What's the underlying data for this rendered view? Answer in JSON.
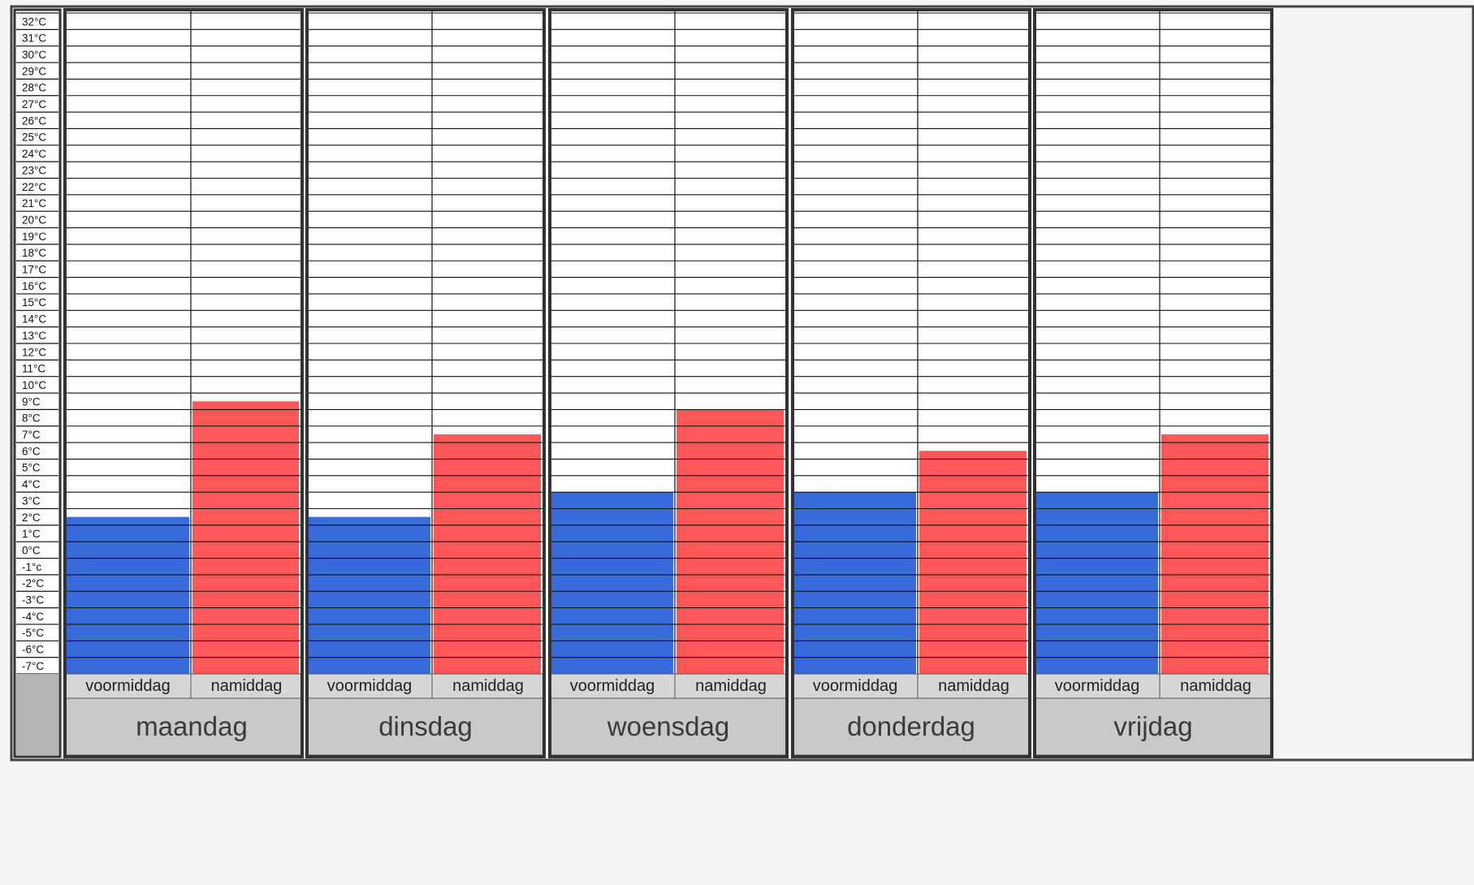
{
  "chart_data": {
    "type": "bar",
    "unit": "°C",
    "y_ticks": [
      "32°C",
      "31°C",
      "30°C",
      "29°C",
      "28°C",
      "27°C",
      "26°C",
      "25°C",
      "24°C",
      "23°C",
      "22°C",
      "21°C",
      "20°C",
      "19°C",
      "18°C",
      "17°C",
      "16°C",
      "15°C",
      "14°C",
      "13°C",
      "12°C",
      "11°C",
      "10°C",
      "9°C",
      "8°C",
      "7°C",
      "6°C",
      "5°C",
      "4°C",
      "3°C",
      "2°C",
      "1°C",
      "0°C",
      "-1°c",
      "-2°C",
      "-3°C",
      "-4°C",
      "-5°C",
      "-6°C",
      "-7°C"
    ],
    "y_max": 32,
    "y_min": -7,
    "days": [
      {
        "label": "maandag",
        "periods": [
          {
            "label": "voormiddag",
            "value": 1.5
          },
          {
            "label": "namiddag",
            "value": 8.5
          }
        ]
      },
      {
        "label": "dinsdag",
        "periods": [
          {
            "label": "voormiddag",
            "value": 1.5
          },
          {
            "label": "namiddag",
            "value": 6.5
          }
        ]
      },
      {
        "label": "woensdag",
        "periods": [
          {
            "label": "voormiddag",
            "value": 3.0
          },
          {
            "label": "namiddag",
            "value": 8.0
          }
        ]
      },
      {
        "label": "donderdag",
        "periods": [
          {
            "label": "voormiddag",
            "value": 3.0
          },
          {
            "label": "namiddag",
            "value": 5.5
          }
        ]
      },
      {
        "label": "vrijdag",
        "periods": [
          {
            "label": "voormiddag",
            "value": 3.0
          },
          {
            "label": "namiddag",
            "value": 6.5
          }
        ]
      }
    ],
    "colors": {
      "voormiddag": "#2a5fd8",
      "namiddag": "#ff4a4a",
      "grid": "#111111",
      "frame": "#333333",
      "day_band": "#c9c9c9",
      "period_band": "#d6d6d6"
    },
    "grid": true
  }
}
